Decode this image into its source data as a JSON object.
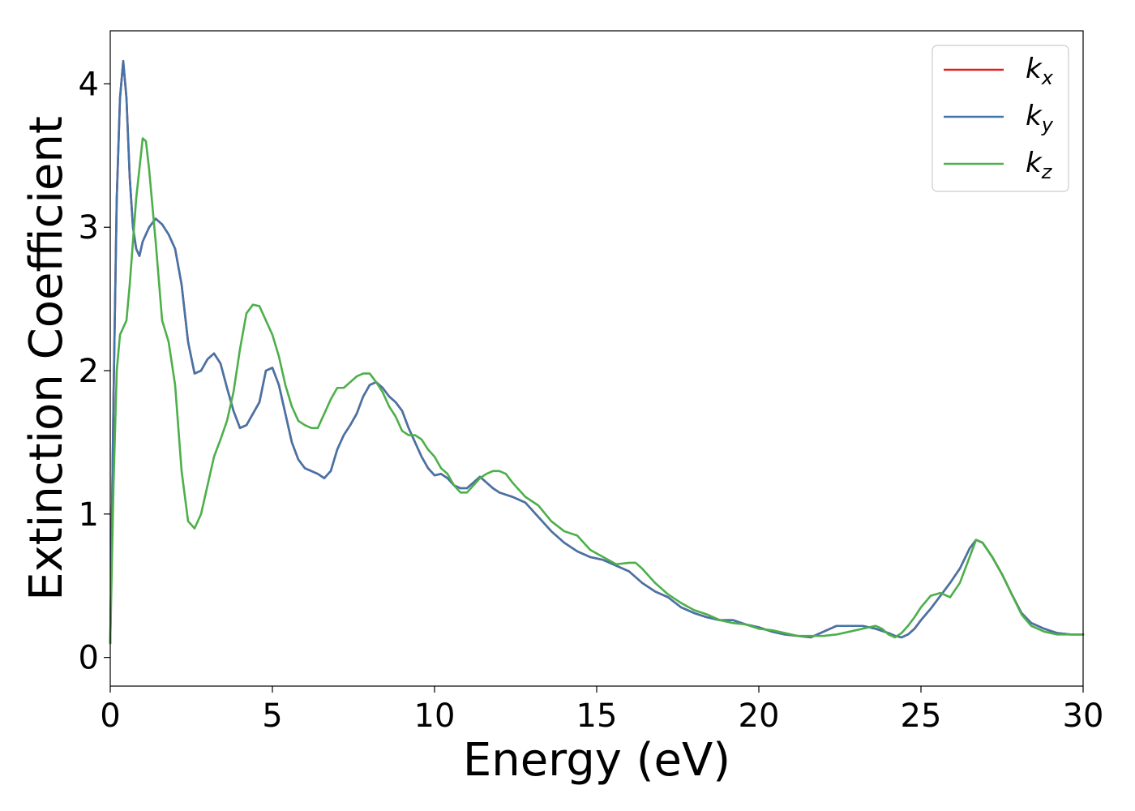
{
  "chart_data": {
    "type": "line",
    "xlabel": "Energy (eV)",
    "ylabel": "Extinction Coefficient",
    "xlim": [
      0,
      30
    ],
    "ylim": [
      -0.2,
      4.37
    ],
    "xticks": [
      0,
      5,
      10,
      15,
      20,
      25,
      30
    ],
    "yticks": [
      0,
      1,
      2,
      3,
      4
    ],
    "grid": false,
    "legend_position": "top-right",
    "series": [
      {
        "name": "k_x",
        "legend_main": "k",
        "legend_sub": "x",
        "color": "#e41a1c",
        "x": [
          0,
          0.1,
          0.2,
          0.3,
          0.4,
          0.5,
          0.6,
          0.7,
          0.8,
          0.9,
          1.0,
          1.2,
          1.4,
          1.6,
          1.8,
          2.0,
          2.2,
          2.4,
          2.6,
          2.8,
          3.0,
          3.2,
          3.4,
          3.6,
          3.8,
          4.0,
          4.2,
          4.4,
          4.6,
          4.8,
          5.0,
          5.2,
          5.4,
          5.6,
          5.8,
          6.0,
          6.2,
          6.4,
          6.6,
          6.8,
          7.0,
          7.2,
          7.4,
          7.6,
          7.8,
          8.0,
          8.2,
          8.4,
          8.6,
          8.8,
          9.0,
          9.2,
          9.4,
          9.6,
          9.8,
          10.0,
          10.2,
          10.4,
          10.6,
          10.8,
          11.0,
          11.2,
          11.4,
          11.6,
          11.8,
          12.0,
          12.4,
          12.8,
          13.2,
          13.6,
          14.0,
          14.4,
          14.8,
          15.2,
          15.6,
          16.0,
          16.4,
          16.8,
          17.2,
          17.6,
          18.0,
          18.4,
          18.8,
          19.2,
          19.6,
          20.0,
          20.4,
          20.8,
          21.2,
          21.6,
          22.0,
          22.4,
          22.8,
          23.2,
          23.6,
          24.0,
          24.2,
          24.4,
          24.6,
          24.8,
          25.0,
          25.3,
          25.6,
          25.9,
          26.2,
          26.5,
          26.7,
          26.9,
          27.2,
          27.5,
          27.8,
          28.1,
          28.4,
          28.8,
          29.2,
          29.6,
          30.0
        ],
        "y": [
          0.1,
          1.8,
          3.2,
          3.9,
          4.16,
          3.9,
          3.35,
          3.0,
          2.85,
          2.8,
          2.9,
          3.0,
          3.06,
          3.02,
          2.95,
          2.85,
          2.6,
          2.2,
          1.98,
          2.0,
          2.08,
          2.12,
          2.05,
          1.88,
          1.72,
          1.6,
          1.62,
          1.7,
          1.78,
          2.0,
          2.02,
          1.9,
          1.7,
          1.5,
          1.38,
          1.32,
          1.3,
          1.28,
          1.25,
          1.3,
          1.45,
          1.55,
          1.62,
          1.7,
          1.82,
          1.9,
          1.92,
          1.88,
          1.82,
          1.78,
          1.72,
          1.6,
          1.5,
          1.4,
          1.32,
          1.27,
          1.28,
          1.25,
          1.2,
          1.18,
          1.18,
          1.22,
          1.26,
          1.22,
          1.18,
          1.15,
          1.12,
          1.08,
          0.98,
          0.88,
          0.8,
          0.74,
          0.7,
          0.68,
          0.64,
          0.6,
          0.52,
          0.46,
          0.42,
          0.35,
          0.31,
          0.28,
          0.26,
          0.26,
          0.23,
          0.21,
          0.18,
          0.16,
          0.15,
          0.14,
          0.18,
          0.22,
          0.22,
          0.22,
          0.2,
          0.17,
          0.15,
          0.14,
          0.16,
          0.2,
          0.26,
          0.34,
          0.43,
          0.52,
          0.62,
          0.76,
          0.82,
          0.8,
          0.7,
          0.58,
          0.44,
          0.31,
          0.24,
          0.2,
          0.17,
          0.16,
          0.16
        ]
      },
      {
        "name": "k_y",
        "legend_main": "k",
        "legend_sub": "y",
        "color": "#4474a8",
        "x": [
          0,
          0.1,
          0.2,
          0.3,
          0.4,
          0.5,
          0.6,
          0.7,
          0.8,
          0.9,
          1.0,
          1.2,
          1.4,
          1.6,
          1.8,
          2.0,
          2.2,
          2.4,
          2.6,
          2.8,
          3.0,
          3.2,
          3.4,
          3.6,
          3.8,
          4.0,
          4.2,
          4.4,
          4.6,
          4.8,
          5.0,
          5.2,
          5.4,
          5.6,
          5.8,
          6.0,
          6.2,
          6.4,
          6.6,
          6.8,
          7.0,
          7.2,
          7.4,
          7.6,
          7.8,
          8.0,
          8.2,
          8.4,
          8.6,
          8.8,
          9.0,
          9.2,
          9.4,
          9.6,
          9.8,
          10.0,
          10.2,
          10.4,
          10.6,
          10.8,
          11.0,
          11.2,
          11.4,
          11.6,
          11.8,
          12.0,
          12.4,
          12.8,
          13.2,
          13.6,
          14.0,
          14.4,
          14.8,
          15.2,
          15.6,
          16.0,
          16.4,
          16.8,
          17.2,
          17.6,
          18.0,
          18.4,
          18.8,
          19.2,
          19.6,
          20.0,
          20.4,
          20.8,
          21.2,
          21.6,
          22.0,
          22.4,
          22.8,
          23.2,
          23.6,
          24.0,
          24.2,
          24.4,
          24.6,
          24.8,
          25.0,
          25.3,
          25.6,
          25.9,
          26.2,
          26.5,
          26.7,
          26.9,
          27.2,
          27.5,
          27.8,
          28.1,
          28.4,
          28.8,
          29.2,
          29.6,
          30.0
        ],
        "y": [
          0.1,
          1.8,
          3.2,
          3.9,
          4.16,
          3.9,
          3.35,
          3.0,
          2.85,
          2.8,
          2.9,
          3.0,
          3.06,
          3.02,
          2.95,
          2.85,
          2.6,
          2.2,
          1.98,
          2.0,
          2.08,
          2.12,
          2.05,
          1.88,
          1.72,
          1.6,
          1.62,
          1.7,
          1.78,
          2.0,
          2.02,
          1.9,
          1.7,
          1.5,
          1.38,
          1.32,
          1.3,
          1.28,
          1.25,
          1.3,
          1.45,
          1.55,
          1.62,
          1.7,
          1.82,
          1.9,
          1.92,
          1.88,
          1.82,
          1.78,
          1.72,
          1.6,
          1.5,
          1.4,
          1.32,
          1.27,
          1.28,
          1.25,
          1.2,
          1.18,
          1.18,
          1.22,
          1.26,
          1.22,
          1.18,
          1.15,
          1.12,
          1.08,
          0.98,
          0.88,
          0.8,
          0.74,
          0.7,
          0.68,
          0.64,
          0.6,
          0.52,
          0.46,
          0.42,
          0.35,
          0.31,
          0.28,
          0.26,
          0.26,
          0.23,
          0.21,
          0.18,
          0.16,
          0.15,
          0.14,
          0.18,
          0.22,
          0.22,
          0.22,
          0.2,
          0.17,
          0.15,
          0.14,
          0.16,
          0.2,
          0.26,
          0.34,
          0.43,
          0.52,
          0.62,
          0.76,
          0.82,
          0.8,
          0.7,
          0.58,
          0.44,
          0.31,
          0.24,
          0.2,
          0.17,
          0.16,
          0.16
        ]
      },
      {
        "name": "k_z",
        "legend_main": "k",
        "legend_sub": "z",
        "color": "#4daf4a",
        "x": [
          0,
          0.1,
          0.2,
          0.3,
          0.4,
          0.5,
          0.6,
          0.8,
          1.0,
          1.1,
          1.2,
          1.4,
          1.6,
          1.8,
          2.0,
          2.2,
          2.4,
          2.6,
          2.8,
          3.0,
          3.2,
          3.4,
          3.6,
          3.8,
          4.0,
          4.2,
          4.4,
          4.6,
          4.8,
          5.0,
          5.2,
          5.4,
          5.6,
          5.8,
          6.0,
          6.2,
          6.4,
          6.6,
          6.8,
          7.0,
          7.2,
          7.4,
          7.6,
          7.8,
          8.0,
          8.2,
          8.4,
          8.6,
          8.8,
          9.0,
          9.2,
          9.4,
          9.6,
          9.8,
          10.0,
          10.2,
          10.4,
          10.6,
          10.8,
          11.0,
          11.2,
          11.4,
          11.6,
          11.8,
          12.0,
          12.2,
          12.4,
          12.8,
          13.2,
          13.6,
          14.0,
          14.4,
          14.8,
          15.2,
          15.6,
          16.0,
          16.2,
          16.4,
          16.8,
          17.2,
          17.6,
          18.0,
          18.4,
          18.8,
          19.2,
          19.6,
          20.0,
          20.4,
          20.8,
          21.2,
          21.6,
          22.0,
          22.4,
          22.8,
          23.2,
          23.6,
          23.8,
          24.0,
          24.2,
          24.4,
          24.6,
          24.8,
          25.0,
          25.3,
          25.6,
          25.9,
          26.2,
          26.5,
          26.7,
          26.9,
          27.2,
          27.5,
          27.8,
          28.1,
          28.4,
          28.8,
          29.2,
          29.6,
          30.0
        ],
        "y": [
          0.1,
          1.2,
          2.0,
          2.25,
          2.3,
          2.35,
          2.6,
          3.2,
          3.62,
          3.6,
          3.4,
          2.9,
          2.35,
          2.2,
          1.9,
          1.3,
          0.95,
          0.9,
          1.0,
          1.2,
          1.4,
          1.52,
          1.65,
          1.85,
          2.15,
          2.4,
          2.46,
          2.45,
          2.35,
          2.25,
          2.1,
          1.9,
          1.75,
          1.65,
          1.62,
          1.6,
          1.6,
          1.7,
          1.8,
          1.88,
          1.88,
          1.92,
          1.96,
          1.98,
          1.98,
          1.92,
          1.85,
          1.75,
          1.68,
          1.58,
          1.55,
          1.55,
          1.52,
          1.45,
          1.4,
          1.32,
          1.28,
          1.2,
          1.15,
          1.15,
          1.2,
          1.25,
          1.28,
          1.3,
          1.3,
          1.28,
          1.22,
          1.12,
          1.06,
          0.95,
          0.88,
          0.85,
          0.75,
          0.7,
          0.65,
          0.66,
          0.66,
          0.62,
          0.52,
          0.44,
          0.38,
          0.33,
          0.3,
          0.26,
          0.24,
          0.23,
          0.2,
          0.19,
          0.17,
          0.15,
          0.15,
          0.15,
          0.16,
          0.18,
          0.2,
          0.22,
          0.2,
          0.16,
          0.14,
          0.17,
          0.22,
          0.28,
          0.35,
          0.43,
          0.45,
          0.42,
          0.52,
          0.7,
          0.82,
          0.8,
          0.7,
          0.58,
          0.44,
          0.3,
          0.22,
          0.18,
          0.16,
          0.16,
          0.16
        ]
      }
    ]
  }
}
